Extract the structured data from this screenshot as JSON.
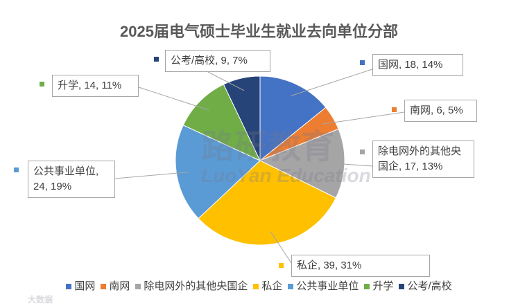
{
  "chart_data": {
    "type": "pie",
    "title": "2025届电气硕士毕业生就业去向单位分部",
    "categories": [
      "国网",
      "南网",
      "除电网外的其他央国企",
      "私企",
      "公共事业单位",
      "升学",
      "公考/高校"
    ],
    "values": [
      18,
      6,
      17,
      39,
      24,
      14,
      9
    ],
    "value_labels": [
      "国网, 18, 14%",
      "南网, 6, 5%",
      "除电网外的其他央国企, 17, 13%",
      "私企, 39, 31%",
      "公共事业单位, 24, 19%",
      "升学, 14, 11%",
      "公考/高校, 9, 7%"
    ],
    "colors": [
      "#4472c4",
      "#ed7d31",
      "#a5a5a5",
      "#ffc000",
      "#5b9bd5",
      "#70ad47",
      "#264478"
    ],
    "legend": "bottom",
    "watermark": [
      "路研教育",
      "LuoYan Education",
      "大数据"
    ]
  }
}
